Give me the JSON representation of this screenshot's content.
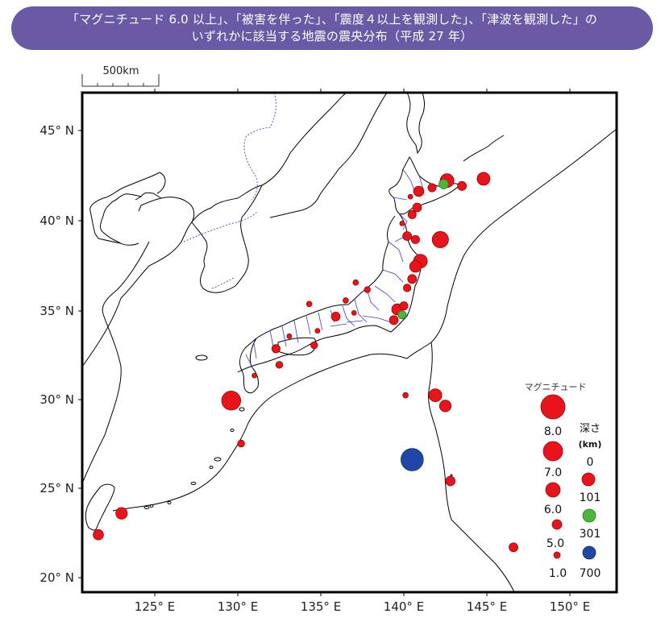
{
  "title": {
    "line1": "「マグニチュード 6.0 以上」、「被害を伴った」、「震度４以上を観測した」、「津波を観測した」の",
    "line2": "いずれかに該当する地震の震央分布（平成 27 年）"
  },
  "scale_bar": {
    "label": "500km"
  },
  "axes": {
    "lat_labels": [
      "45° N",
      "40° N",
      "35° N",
      "30° N",
      "25° N",
      "20° N"
    ],
    "lon_labels": [
      "125° E",
      "130° E",
      "135° E",
      "140° E",
      "145° E",
      "150° E"
    ]
  },
  "legend": {
    "magnitude_title": "マグニチュード",
    "magnitudes": [
      "8.0",
      "7.0",
      "6.0",
      "5.0",
      "1.0"
    ],
    "depth_title": "深さ",
    "depth_unit": "(km)",
    "depths": [
      "0",
      "101",
      "301",
      "700"
    ]
  },
  "colors": {
    "banner": "#6a5aa6",
    "shallow": "#e8141b",
    "intermediate": "#4db53a",
    "deep": "#1f47a8",
    "coastline": "#000000",
    "prefecture_border": "#3b3bd0",
    "national_border": "#5555cc"
  },
  "epicenters": [
    {
      "lon": 142.6,
      "lat": 42.2,
      "mag": 6.3,
      "depth": "shallow"
    },
    {
      "lon": 141.7,
      "lat": 41.8,
      "mag": 5.5,
      "depth": "shallow"
    },
    {
      "lon": 142.4,
      "lat": 42.0,
      "mag": 5.7,
      "depth": "intermediate"
    },
    {
      "lon": 143.5,
      "lat": 41.9,
      "mag": 5.6,
      "depth": "shallow"
    },
    {
      "lon": 144.8,
      "lat": 42.3,
      "mag": 6.2,
      "depth": "shallow"
    },
    {
      "lon": 140.9,
      "lat": 41.6,
      "mag": 5.8,
      "depth": "shallow"
    },
    {
      "lon": 140.4,
      "lat": 41.3,
      "mag": 5.0,
      "depth": "shallow"
    },
    {
      "lon": 140.8,
      "lat": 40.7,
      "mag": 5.6,
      "depth": "shallow"
    },
    {
      "lon": 140.5,
      "lat": 40.3,
      "mag": 5.5,
      "depth": "shallow"
    },
    {
      "lon": 139.9,
      "lat": 39.8,
      "mag": 5.0,
      "depth": "shallow"
    },
    {
      "lon": 140.2,
      "lat": 39.1,
      "mag": 5.6,
      "depth": "shallow"
    },
    {
      "lon": 140.7,
      "lat": 38.9,
      "mag": 5.5,
      "depth": "shallow"
    },
    {
      "lon": 142.2,
      "lat": 38.9,
      "mag": 6.7,
      "depth": "shallow"
    },
    {
      "lon": 141.0,
      "lat": 37.7,
      "mag": 6.3,
      "depth": "shallow"
    },
    {
      "lon": 140.7,
      "lat": 37.4,
      "mag": 6.0,
      "depth": "shallow"
    },
    {
      "lon": 140.5,
      "lat": 36.7,
      "mag": 5.6,
      "depth": "shallow"
    },
    {
      "lon": 140.2,
      "lat": 36.2,
      "mag": 5.4,
      "depth": "shallow"
    },
    {
      "lon": 140.0,
      "lat": 35.2,
      "mag": 5.5,
      "depth": "shallow"
    },
    {
      "lon": 139.6,
      "lat": 35.0,
      "mag": 5.9,
      "depth": "shallow"
    },
    {
      "lon": 139.9,
      "lat": 34.7,
      "mag": 5.5,
      "depth": "intermediate"
    },
    {
      "lon": 139.4,
      "lat": 34.4,
      "mag": 5.6,
      "depth": "shallow"
    },
    {
      "lon": 137.1,
      "lat": 36.5,
      "mag": 5.1,
      "depth": "shallow"
    },
    {
      "lon": 137.8,
      "lat": 36.1,
      "mag": 5.2,
      "depth": "shallow"
    },
    {
      "lon": 136.5,
      "lat": 35.5,
      "mag": 5.1,
      "depth": "shallow"
    },
    {
      "lon": 134.3,
      "lat": 35.3,
      "mag": 5.1,
      "depth": "shallow"
    },
    {
      "lon": 137.0,
      "lat": 34.8,
      "mag": 5.0,
      "depth": "shallow"
    },
    {
      "lon": 134.8,
      "lat": 33.8,
      "mag": 5.0,
      "depth": "shallow"
    },
    {
      "lon": 134.6,
      "lat": 33.0,
      "mag": 5.3,
      "depth": "shallow"
    },
    {
      "lon": 135.9,
      "lat": 34.6,
      "mag": 5.6,
      "depth": "shallow"
    },
    {
      "lon": 133.1,
      "lat": 33.5,
      "mag": 5.0,
      "depth": "shallow"
    },
    {
      "lon": 132.3,
      "lat": 32.8,
      "mag": 5.5,
      "depth": "shallow"
    },
    {
      "lon": 132.5,
      "lat": 31.9,
      "mag": 5.3,
      "depth": "shallow"
    },
    {
      "lon": 131.0,
      "lat": 31.3,
      "mag": 5.0,
      "depth": "shallow"
    },
    {
      "lon": 129.6,
      "lat": 29.9,
      "mag": 7.1,
      "depth": "shallow"
    },
    {
      "lon": 130.2,
      "lat": 27.5,
      "mag": 5.3,
      "depth": "shallow"
    },
    {
      "lon": 140.1,
      "lat": 30.2,
      "mag": 5.1,
      "depth": "shallow"
    },
    {
      "lon": 141.9,
      "lat": 30.2,
      "mag": 6.2,
      "depth": "shallow"
    },
    {
      "lon": 142.5,
      "lat": 29.6,
      "mag": 6.0,
      "depth": "shallow"
    },
    {
      "lon": 140.5,
      "lat": 26.6,
      "mag": 7.6,
      "depth": "deep"
    },
    {
      "lon": 142.8,
      "lat": 25.4,
      "mag": 5.7,
      "depth": "shallow"
    },
    {
      "lon": 146.6,
      "lat": 21.7,
      "mag": 5.6,
      "depth": "shallow"
    },
    {
      "lon": 123.0,
      "lat": 23.6,
      "mag": 6.0,
      "depth": "shallow"
    },
    {
      "lon": 121.6,
      "lat": 22.4,
      "mag": 5.8,
      "depth": "shallow"
    }
  ]
}
